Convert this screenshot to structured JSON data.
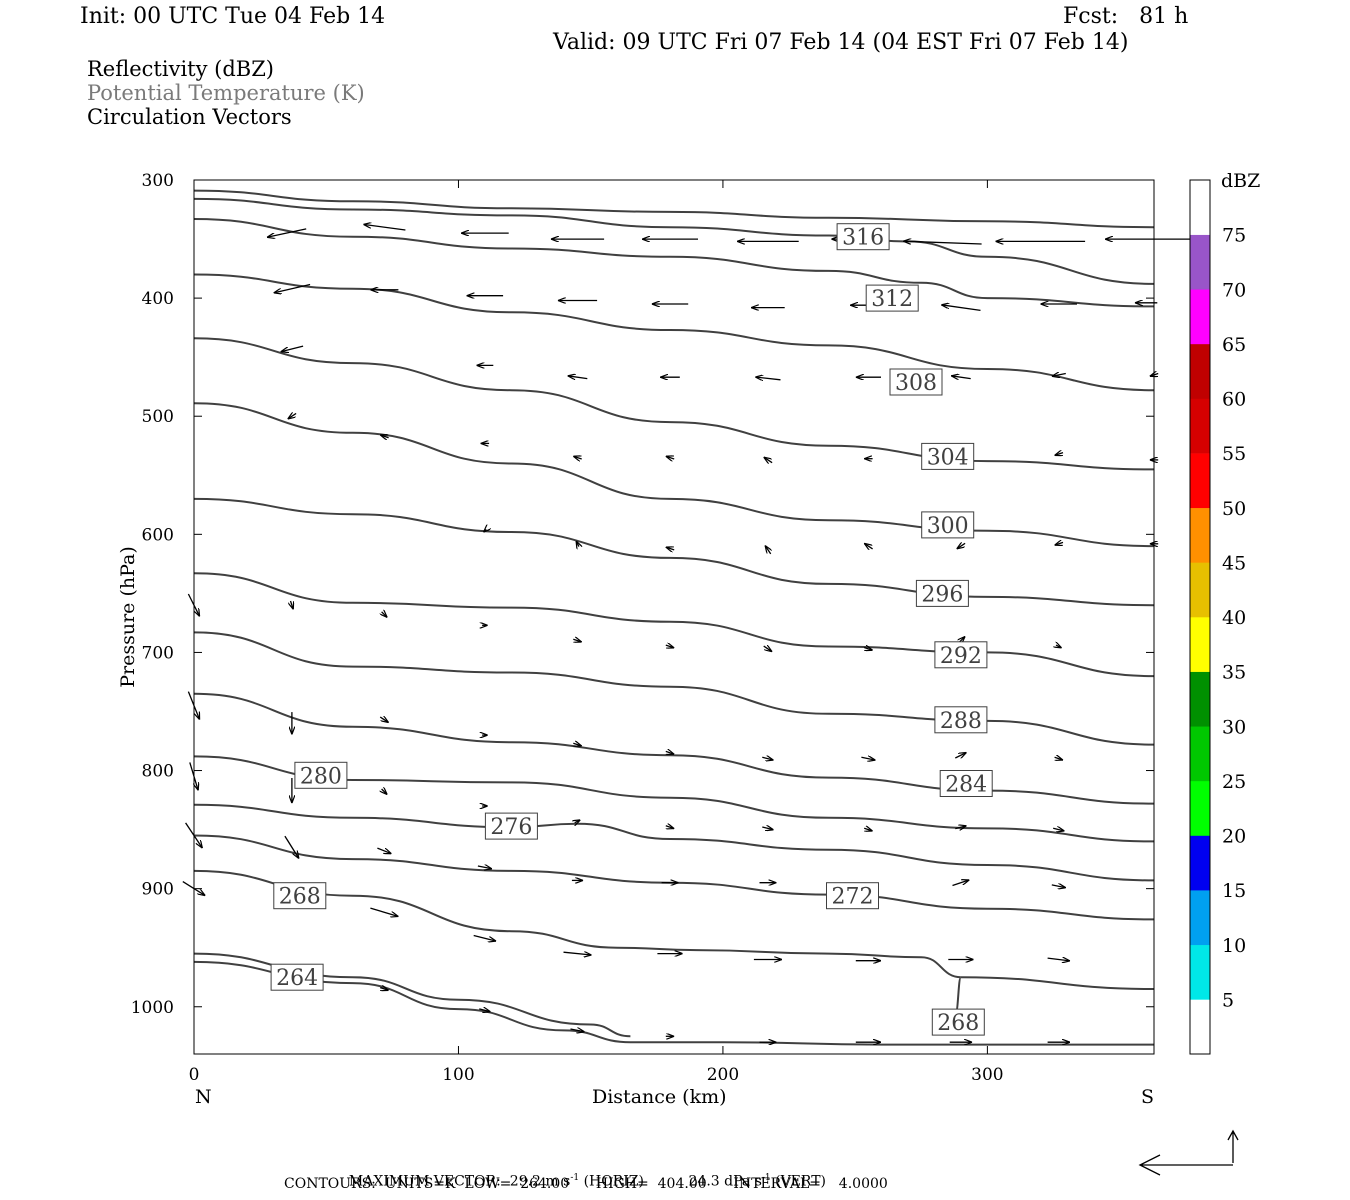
{
  "header": {
    "init": "Init: 00 UTC Tue 04 Feb 14",
    "fcst": "Fcst:   81 h",
    "valid": "Valid: 09 UTC Fri 07 Feb 14 (04 EST Fri 07 Feb 14)"
  },
  "legend": {
    "reflectivity": "Reflectivity (dBZ)",
    "theta": "Potential Temperature (K)",
    "vectors": "Circulation Vectors"
  },
  "colors": {
    "theta_line": "#404040",
    "theta_legend_text": "#7a7a7a"
  },
  "chart_data": {
    "type": "cross-section",
    "xlabel": "Distance (km)",
    "ylabel": "Pressure (hPa)",
    "xlim": [
      0,
      363
    ],
    "ylim": [
      1040,
      300
    ],
    "x_ticks": [
      0,
      100,
      200,
      300
    ],
    "y_ticks": [
      300,
      400,
      500,
      600,
      700,
      800,
      900,
      1000
    ],
    "left_end_label": "N",
    "right_end_label": "S",
    "contour_units": "K",
    "contours": [
      {
        "value": 316,
        "points": [
          [
            0,
            309
          ],
          [
            60,
            318
          ],
          [
            120,
            324
          ],
          [
            180,
            327
          ],
          [
            240,
            332
          ],
          [
            300,
            335
          ],
          [
            363,
            340
          ]
        ],
        "label_at": [
          253,
          348
        ]
      },
      {
        "value": 316,
        "points": [
          [
            0,
            316
          ],
          [
            60,
            325
          ],
          [
            120,
            330
          ],
          [
            180,
            340
          ],
          [
            240,
            347
          ],
          [
            270,
            352
          ],
          [
            300,
            365
          ],
          [
            363,
            388
          ]
        ]
      },
      {
        "value": 312,
        "points": [
          [
            0,
            333
          ],
          [
            60,
            348
          ],
          [
            120,
            358
          ],
          [
            180,
            365
          ],
          [
            240,
            377
          ],
          [
            275,
            387
          ],
          [
            300,
            400
          ],
          [
            363,
            407
          ]
        ],
        "label_at": [
          264,
          400
        ]
      },
      {
        "value": 308,
        "points": [
          [
            0,
            380
          ],
          [
            60,
            392
          ],
          [
            120,
            412
          ],
          [
            180,
            427
          ],
          [
            240,
            440
          ],
          [
            300,
            460
          ],
          [
            363,
            478
          ]
        ],
        "label_at": [
          273,
          471
        ]
      },
      {
        "value": 304,
        "points": [
          [
            0,
            434
          ],
          [
            60,
            455
          ],
          [
            120,
            478
          ],
          [
            180,
            505
          ],
          [
            240,
            525
          ],
          [
            300,
            538
          ],
          [
            363,
            545
          ]
        ],
        "label_at": [
          285,
          534
        ]
      },
      {
        "value": 300,
        "points": [
          [
            0,
            489
          ],
          [
            60,
            514
          ],
          [
            120,
            540
          ],
          [
            180,
            570
          ],
          [
            240,
            588
          ],
          [
            300,
            597
          ],
          [
            363,
            610
          ]
        ],
        "label_at": [
          285,
          592
        ]
      },
      {
        "value": 296,
        "points": [
          [
            0,
            570
          ],
          [
            60,
            583
          ],
          [
            120,
            598
          ],
          [
            180,
            620
          ],
          [
            240,
            642
          ],
          [
            300,
            653
          ],
          [
            363,
            660
          ]
        ],
        "label_at": [
          283,
          650
        ]
      },
      {
        "value": 292,
        "points": [
          [
            0,
            633
          ],
          [
            60,
            658
          ],
          [
            120,
            662
          ],
          [
            180,
            674
          ],
          [
            240,
            695
          ],
          [
            300,
            700
          ],
          [
            363,
            720
          ]
        ],
        "label_at": [
          290,
          702
        ]
      },
      {
        "value": 288,
        "points": [
          [
            0,
            683
          ],
          [
            60,
            712
          ],
          [
            120,
            717
          ],
          [
            180,
            729
          ],
          [
            240,
            752
          ],
          [
            300,
            758
          ],
          [
            363,
            778
          ]
        ],
        "label_at": [
          290,
          757
        ]
      },
      {
        "value": 284,
        "points": [
          [
            0,
            735
          ],
          [
            60,
            763
          ],
          [
            120,
            776
          ],
          [
            180,
            787
          ],
          [
            240,
            806
          ],
          [
            300,
            817
          ],
          [
            363,
            828
          ]
        ],
        "label_at": [
          292,
          811
        ]
      },
      {
        "value": 280,
        "points": [
          [
            0,
            788
          ],
          [
            60,
            808
          ],
          [
            120,
            810
          ],
          [
            180,
            823
          ],
          [
            240,
            840
          ],
          [
            300,
            849
          ],
          [
            363,
            860
          ]
        ],
        "label_at": [
          48,
          804
        ]
      },
      {
        "value": 276,
        "points": [
          [
            0,
            829
          ],
          [
            60,
            840
          ],
          [
            120,
            848
          ],
          [
            145,
            845
          ],
          [
            180,
            858
          ],
          [
            240,
            867
          ],
          [
            300,
            880
          ],
          [
            363,
            893
          ]
        ],
        "label_at": [
          120,
          847
        ]
      },
      {
        "value": 272,
        "points": [
          [
            0,
            855
          ],
          [
            60,
            875
          ],
          [
            120,
            885
          ],
          [
            180,
            895
          ],
          [
            240,
            905
          ],
          [
            300,
            917
          ],
          [
            363,
            926
          ]
        ],
        "label_at": [
          249,
          906
        ]
      },
      {
        "value": 268,
        "points": [
          [
            0,
            885
          ],
          [
            60,
            906
          ],
          [
            120,
            936
          ],
          [
            160,
            950
          ],
          [
            190,
            952
          ],
          [
            240,
            955
          ],
          [
            275,
            958
          ],
          [
            290,
            975
          ],
          [
            288,
            1005
          ]
        ],
        "label_at": [
          40,
          906
        ]
      },
      {
        "value": 268,
        "points": [
          [
            290,
            975
          ],
          [
            363,
            985
          ]
        ],
        "label_at": [
          289,
          1013
        ]
      },
      {
        "value": 264,
        "points": [
          [
            0,
            955
          ],
          [
            60,
            975
          ],
          [
            100,
            994
          ],
          [
            150,
            1015
          ],
          [
            165,
            1025
          ]
        ],
        "label_at": [
          39,
          975
        ]
      },
      {
        "value": 264,
        "points": [
          [
            0,
            962
          ],
          [
            60,
            980
          ],
          [
            100,
            1002
          ],
          [
            140,
            1020
          ],
          [
            165,
            1030
          ],
          [
            200,
            1030
          ],
          [
            260,
            1032
          ],
          [
            363,
            1032
          ]
        ]
      }
    ],
    "vectors": [
      {
        "x": 35,
        "p": 345,
        "u": -14,
        "w": -3
      },
      {
        "x": 72,
        "p": 340,
        "u": -15,
        "w": 2
      },
      {
        "x": 110,
        "p": 345,
        "u": -17,
        "w": 0
      },
      {
        "x": 145,
        "p": 350,
        "u": -19,
        "w": 0
      },
      {
        "x": 180,
        "p": 350,
        "u": -20,
        "w": 0
      },
      {
        "x": 217,
        "p": 352,
        "u": -22,
        "w": 0
      },
      {
        "x": 250,
        "p": 350,
        "u": -17,
        "w": 0
      },
      {
        "x": 283,
        "p": 353,
        "u": -28,
        "w": 1
      },
      {
        "x": 320,
        "p": 352,
        "u": -32,
        "w": 0
      },
      {
        "x": 363,
        "p": 350,
        "u": -35,
        "w": 0
      },
      {
        "x": 37,
        "p": 392,
        "u": -13,
        "w": -3
      },
      {
        "x": 72,
        "p": 393,
        "u": -10,
        "w": 0
      },
      {
        "x": 110,
        "p": 398,
        "u": -13,
        "w": 0
      },
      {
        "x": 145,
        "p": 402,
        "u": -14,
        "w": 0
      },
      {
        "x": 180,
        "p": 405,
        "u": -13,
        "w": 0
      },
      {
        "x": 217,
        "p": 408,
        "u": -12,
        "w": 0
      },
      {
        "x": 255,
        "p": 406,
        "u": -13,
        "w": 0
      },
      {
        "x": 290,
        "p": 408,
        "u": -14,
        "w": 2
      },
      {
        "x": 327,
        "p": 405,
        "u": -13,
        "w": 0
      },
      {
        "x": 360,
        "p": 404,
        "u": -8,
        "w": 0
      },
      {
        "x": 37,
        "p": 443,
        "u": -8,
        "w": -2
      },
      {
        "x": 110,
        "p": 457,
        "u": -6,
        "w": 0
      },
      {
        "x": 145,
        "p": 467,
        "u": -7,
        "w": 1
      },
      {
        "x": 180,
        "p": 467,
        "u": -7,
        "w": 0
      },
      {
        "x": 217,
        "p": 468,
        "u": -9,
        "w": 1
      },
      {
        "x": 255,
        "p": 467,
        "u": -9,
        "w": 0
      },
      {
        "x": 290,
        "p": 467,
        "u": -7,
        "w": 1
      },
      {
        "x": 327,
        "p": 465,
        "u": -5,
        "w": -1
      },
      {
        "x": 363,
        "p": 465,
        "u": -3,
        "w": -1
      },
      {
        "x": 37,
        "p": 500,
        "u": -3,
        "w": -2
      },
      {
        "x": 72,
        "p": 517,
        "u": -3,
        "w": 1
      },
      {
        "x": 110,
        "p": 523,
        "u": -3,
        "w": 0
      },
      {
        "x": 145,
        "p": 535,
        "u": -3,
        "w": 1
      },
      {
        "x": 180,
        "p": 535,
        "u": -3,
        "w": 1
      },
      {
        "x": 217,
        "p": 537,
        "u": -3,
        "w": 2
      },
      {
        "x": 255,
        "p": 536,
        "u": -3,
        "w": 0
      },
      {
        "x": 327,
        "p": 532,
        "u": -3,
        "w": -1
      },
      {
        "x": 363,
        "p": 537,
        "u": -3,
        "w": 0
      },
      {
        "x": 110,
        "p": 597,
        "u": -1,
        "w": -1
      },
      {
        "x": 145,
        "p": 608,
        "u": -1,
        "w": 2
      },
      {
        "x": 180,
        "p": 612,
        "u": -3,
        "w": 1
      },
      {
        "x": 217,
        "p": 613,
        "u": -2,
        "w": 3
      },
      {
        "x": 255,
        "p": 610,
        "u": -3,
        "w": 2
      },
      {
        "x": 290,
        "p": 610,
        "u": -3,
        "w": -2
      },
      {
        "x": 327,
        "p": 608,
        "u": -3,
        "w": -1
      },
      {
        "x": 363,
        "p": 608,
        "u": -3,
        "w": 0
      },
      {
        "x": 37,
        "p": 660,
        "u": 1,
        "w": -3
      },
      {
        "x": 72,
        "p": 668,
        "u": 2,
        "w": -2
      },
      {
        "x": 110,
        "p": 677,
        "u": 2,
        "w": 0
      },
      {
        "x": 145,
        "p": 690,
        "u": 3,
        "w": -1
      },
      {
        "x": 180,
        "p": 695,
        "u": 3,
        "w": -1
      },
      {
        "x": 217,
        "p": 697,
        "u": 3,
        "w": -2
      },
      {
        "x": 255,
        "p": 697,
        "u": 3,
        "w": -1
      },
      {
        "x": 290,
        "p": 690,
        "u": 3,
        "w": 3
      },
      {
        "x": 327,
        "p": 695,
        "u": 2,
        "w": -1
      },
      {
        "x": 0,
        "p": 660,
        "u": 4,
        "w": -8
      },
      {
        "x": 0,
        "p": 745,
        "u": 4,
        "w": -10
      },
      {
        "x": 37,
        "p": 760,
        "u": 0,
        "w": -8
      },
      {
        "x": 72,
        "p": 757,
        "u": 3,
        "w": -2
      },
      {
        "x": 110,
        "p": 770,
        "u": 2,
        "w": 0
      },
      {
        "x": 145,
        "p": 778,
        "u": 3,
        "w": -1
      },
      {
        "x": 180,
        "p": 785,
        "u": 3,
        "w": -1
      },
      {
        "x": 217,
        "p": 790,
        "u": 4,
        "w": -1
      },
      {
        "x": 255,
        "p": 790,
        "u": 5,
        "w": -1
      },
      {
        "x": 290,
        "p": 787,
        "u": 4,
        "w": 2
      },
      {
        "x": 327,
        "p": 790,
        "u": 3,
        "w": -1
      },
      {
        "x": 0,
        "p": 805,
        "u": 3,
        "w": -10
      },
      {
        "x": 37,
        "p": 817,
        "u": 0,
        "w": -9
      },
      {
        "x": 72,
        "p": 818,
        "u": 2,
        "w": -2
      },
      {
        "x": 110,
        "p": 830,
        "u": 2,
        "w": 0
      },
      {
        "x": 145,
        "p": 843,
        "u": 2,
        "w": 1
      },
      {
        "x": 180,
        "p": 848,
        "u": 3,
        "w": -1
      },
      {
        "x": 217,
        "p": 849,
        "u": 4,
        "w": -1
      },
      {
        "x": 255,
        "p": 850,
        "u": 3,
        "w": -1
      },
      {
        "x": 290,
        "p": 848,
        "u": 4,
        "w": 1
      },
      {
        "x": 327,
        "p": 850,
        "u": 4,
        "w": -1
      },
      {
        "x": 0,
        "p": 855,
        "u": 6,
        "w": -9
      },
      {
        "x": 37,
        "p": 865,
        "u": 5,
        "w": -8
      },
      {
        "x": 72,
        "p": 868,
        "u": 5,
        "w": -2
      },
      {
        "x": 110,
        "p": 882,
        "u": 5,
        "w": -1
      },
      {
        "x": 145,
        "p": 893,
        "u": 4,
        "w": 0
      },
      {
        "x": 180,
        "p": 895,
        "u": 6,
        "w": 0
      },
      {
        "x": 217,
        "p": 895,
        "u": 6,
        "w": 0
      },
      {
        "x": 255,
        "p": 898,
        "u": 6,
        "w": 0
      },
      {
        "x": 290,
        "p": 895,
        "u": 6,
        "w": 2
      },
      {
        "x": 327,
        "p": 898,
        "u": 5,
        "w": -1
      },
      {
        "x": 0,
        "p": 900,
        "u": 8,
        "w": -5
      },
      {
        "x": 37,
        "p": 903,
        "u": 10,
        "w": -5
      },
      {
        "x": 72,
        "p": 920,
        "u": 10,
        "w": -3
      },
      {
        "x": 110,
        "p": 942,
        "u": 8,
        "w": -2
      },
      {
        "x": 145,
        "p": 955,
        "u": 10,
        "w": -1
      },
      {
        "x": 180,
        "p": 955,
        "u": 9,
        "w": 0
      },
      {
        "x": 217,
        "p": 960,
        "u": 10,
        "w": 0
      },
      {
        "x": 255,
        "p": 961,
        "u": 9,
        "w": 0
      },
      {
        "x": 290,
        "p": 960,
        "u": 9,
        "w": 0
      },
      {
        "x": 327,
        "p": 960,
        "u": 8,
        "w": -1
      },
      {
        "x": 72,
        "p": 985,
        "u": 3,
        "w": -1
      },
      {
        "x": 110,
        "p": 1003,
        "u": 4,
        "w": -1
      },
      {
        "x": 145,
        "p": 1020,
        "u": 5,
        "w": -1
      },
      {
        "x": 180,
        "p": 1025,
        "u": 3,
        "w": 0
      },
      {
        "x": 217,
        "p": 1030,
        "u": 6,
        "w": 0
      },
      {
        "x": 255,
        "p": 1030,
        "u": 9,
        "w": 0
      },
      {
        "x": 290,
        "p": 1030,
        "u": 8,
        "w": 0
      },
      {
        "x": 327,
        "p": 1030,
        "u": 8,
        "w": 0
      }
    ],
    "colorbar": {
      "title": "dBZ",
      "labels": [
        "5",
        "10",
        "15",
        "20",
        "25",
        "30",
        "35",
        "40",
        "45",
        "50",
        "55",
        "60",
        "65",
        "70",
        "75"
      ],
      "colors": [
        "#ffffff",
        "#00e8e8",
        "#00a0f0",
        "#0000f0",
        "#00ff00",
        "#00c800",
        "#009000",
        "#ffff00",
        "#e7c000",
        "#ff9000",
        "#ff0000",
        "#d60000",
        "#c00000",
        "#ff00ff",
        "#9955c9",
        "#ffffff"
      ]
    },
    "footer": {
      "max_vector_label": "MAXIMUM VECTOR:",
      "max_vector_horiz": "29.2 m s",
      "horiz_tag": "(HORIZ)",
      "max_vector_vert": "24.3 dPa s",
      "vert_tag": "(VERT)",
      "exponent": "-1",
      "contours_line": "CONTOURS:  UNITS=K  LOW=  264.00      HIGH=  404.00      INTERVAL=    4.0000"
    }
  }
}
